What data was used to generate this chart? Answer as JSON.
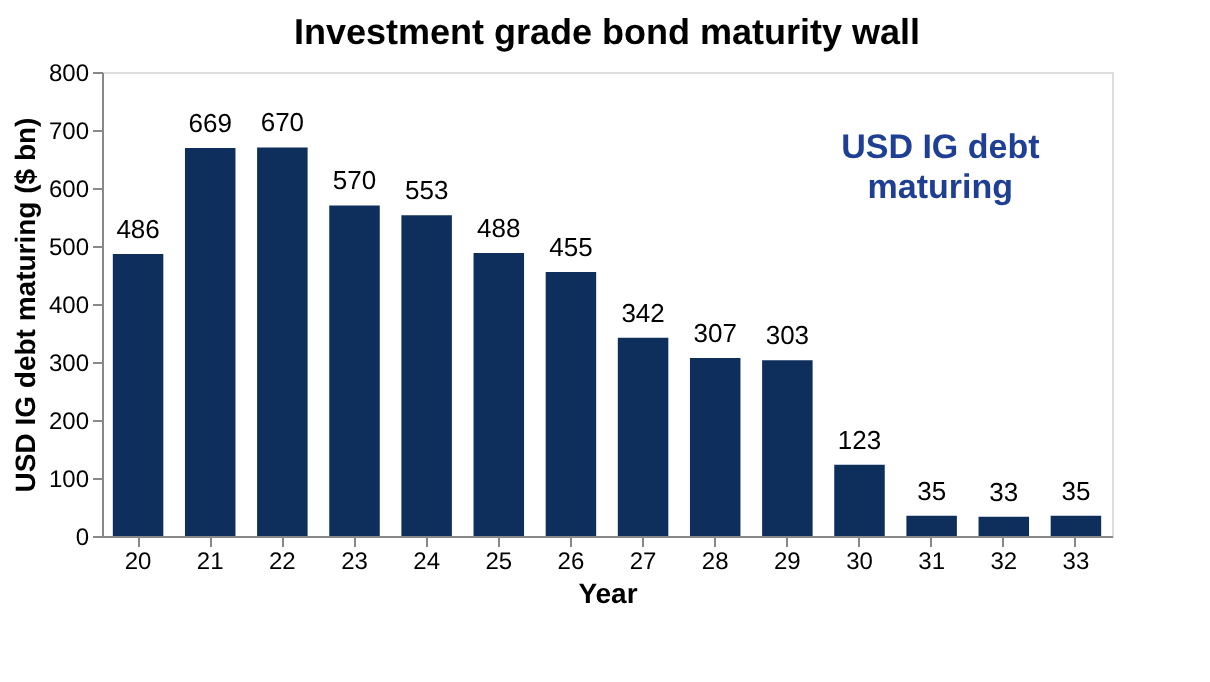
{
  "chart_data": {
    "type": "bar",
    "title": "Investment grade bond maturity wall",
    "xlabel": "Year",
    "ylabel": "USD IG debt maturing ($ bn)",
    "categories": [
      "20",
      "21",
      "22",
      "23",
      "24",
      "25",
      "26",
      "27",
      "28",
      "29",
      "30",
      "31",
      "32",
      "33"
    ],
    "values": [
      486,
      669,
      670,
      570,
      553,
      488,
      455,
      342,
      307,
      303,
      123,
      35,
      33,
      35
    ],
    "color": "#0e2f5b",
    "ylim": [
      0,
      800
    ],
    "yticks": [
      0,
      100,
      200,
      300,
      400,
      500,
      600,
      700,
      800
    ],
    "grid": false,
    "data_labels": true,
    "annotations": [
      "USD IG debt maturing"
    ]
  }
}
